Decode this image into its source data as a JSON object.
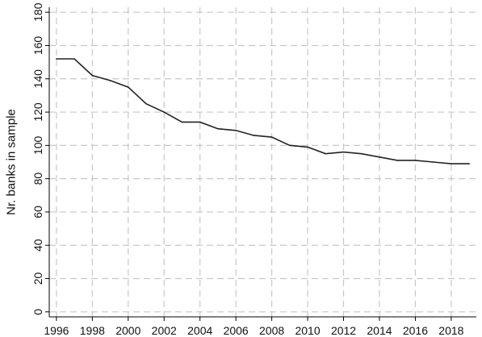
{
  "chart_data": {
    "type": "line",
    "title": "",
    "xlabel": "",
    "ylabel": "Nr. banks in sample",
    "xlim": [
      1995.6,
      2019.4
    ],
    "ylim": [
      -3,
      183
    ],
    "xticks": [
      1996,
      1998,
      2000,
      2002,
      2004,
      2006,
      2008,
      2010,
      2012,
      2014,
      2016,
      2018
    ],
    "yticks": [
      0,
      20,
      40,
      60,
      80,
      100,
      120,
      140,
      160,
      180
    ],
    "grid": true,
    "x": [
      1996,
      1997,
      1998,
      1999,
      2000,
      2001,
      2002,
      2003,
      2004,
      2005,
      2006,
      2007,
      2008,
      2009,
      2010,
      2011,
      2012,
      2013,
      2014,
      2015,
      2016,
      2017,
      2018,
      2019
    ],
    "series": [
      {
        "values": [
          152,
          152,
          142,
          139,
          135,
          125,
          120,
          114,
          114,
          110,
          109,
          106,
          105,
          100,
          99,
          95,
          96,
          95,
          93,
          91,
          91,
          90,
          89,
          89
        ]
      }
    ]
  }
}
